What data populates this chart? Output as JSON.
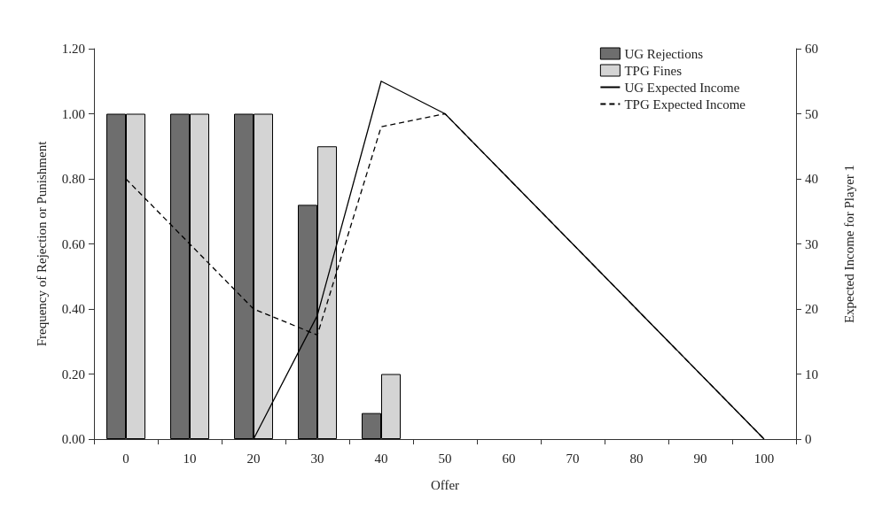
{
  "chart_data": {
    "type": "bar",
    "xlabel": "Offer",
    "ylabel": "Frequency of Rejection or Punishment",
    "y2label": "Expected Income for Player 1",
    "categories": [
      "0",
      "10",
      "20",
      "30",
      "40",
      "50",
      "60",
      "70",
      "80",
      "90",
      "100"
    ],
    "series": [
      {
        "name": "UG Rejections",
        "color": "#6e6e6e",
        "values": [
          1.0,
          1.0,
          1.0,
          0.72,
          0.08,
          null,
          null,
          null,
          null,
          null,
          null
        ]
      },
      {
        "name": "TPG Fines",
        "color": "#d4d4d4",
        "values": [
          1.0,
          1.0,
          1.0,
          0.9,
          0.2,
          null,
          null,
          null,
          null,
          null,
          null
        ]
      },
      {
        "name": "UG Expected Income",
        "type": "line",
        "axis": "y2",
        "color": "#000000",
        "line_style": "solid",
        "values": [
          null,
          null,
          0,
          19,
          55,
          50,
          40,
          30,
          20,
          10,
          0
        ]
      },
      {
        "name": "TPG Expected Income",
        "type": "line",
        "axis": "y2",
        "color": "#000000",
        "line_style": "dashed",
        "values": [
          40,
          30,
          20,
          16,
          48,
          50,
          40,
          30,
          20,
          10,
          0
        ]
      }
    ],
    "ylim": [
      0,
      1.2
    ],
    "yticks": [
      {
        "value": 0,
        "label": "0.00"
      },
      {
        "value": 0.2,
        "label": "0.20"
      },
      {
        "value": 0.4,
        "label": "0.40"
      },
      {
        "value": 0.6,
        "label": "0.60"
      },
      {
        "value": 0.8,
        "label": "0.80"
      },
      {
        "value": 1,
        "label": "1.00"
      },
      {
        "value": 1.2,
        "label": "1.20"
      }
    ],
    "y2lim": [
      0,
      60
    ],
    "y2ticks": [
      0,
      10,
      20,
      30,
      40,
      50,
      60
    ],
    "grid": false,
    "legend": "top right",
    "marker": "none"
  }
}
